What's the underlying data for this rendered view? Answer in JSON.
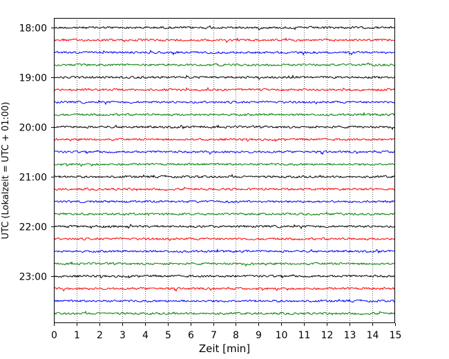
{
  "chart_data": {
    "type": "line",
    "title": "",
    "xlabel": "Zeit  [min]",
    "ylabel": "UTC (Lokalzeit = UTC + 01:00)",
    "xlim": [
      0,
      15
    ],
    "x_ticks": [
      "0",
      "1",
      "2",
      "3",
      "4",
      "5",
      "6",
      "7",
      "8",
      "9",
      "10",
      "11",
      "12",
      "13",
      "14",
      "15"
    ],
    "y_ticks": [
      "18:00",
      "19:00",
      "20:00",
      "21:00",
      "22:00",
      "23:00"
    ],
    "trace_interval_minutes": 15,
    "trace_start": "18:00",
    "trace_count": 24,
    "trace_colors": [
      "#000000",
      "#ff0000",
      "#0000ff",
      "#008000"
    ],
    "grid": "vertical dotted",
    "legend": "none"
  }
}
